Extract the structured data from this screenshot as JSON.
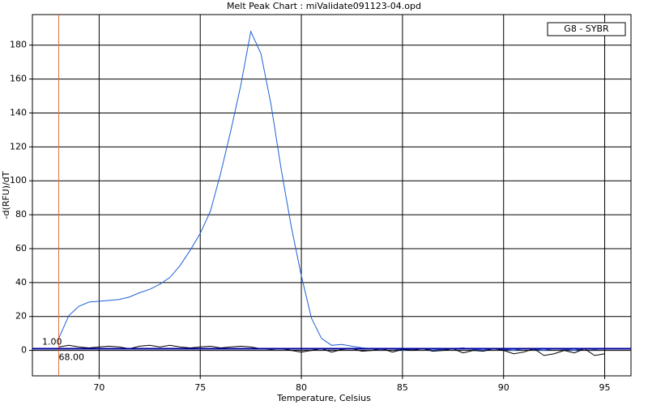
{
  "chart_data": {
    "type": "line",
    "title": "Melt Peak Chart : miValidate091123-04.opd",
    "x_label": "Temperature, Celsius",
    "y_label": "-d(RFU)/dT",
    "legend_label": "G8 - SYBR",
    "x": [
      68,
      68.5,
      69,
      69.5,
      70,
      70.5,
      71,
      71.5,
      72,
      72.5,
      73,
      73.5,
      74,
      74.5,
      75,
      75.5,
      76,
      76.5,
      77,
      77.5,
      78,
      78.5,
      79,
      79.5,
      80,
      80.5,
      81,
      81.5,
      82,
      82.5,
      83,
      83.5,
      84,
      84.5,
      85,
      85.5,
      86,
      86.5,
      87,
      87.5,
      88,
      88.5,
      89,
      89.5,
      90,
      90.5,
      91,
      91.5,
      92,
      92.5,
      93,
      93.5,
      94,
      94.5,
      95
    ],
    "series": [
      {
        "color": "#1f5fd6",
        "values": [
          7,
          20.5,
          26,
          28.5,
          29,
          29.5,
          30,
          31.5,
          34,
          36,
          39,
          43,
          50,
          59,
          69,
          82,
          104,
          129,
          156,
          188,
          175,
          145,
          107,
          73,
          44,
          19,
          7,
          3,
          3.5,
          2.5,
          1.5,
          1,
          0.5,
          1,
          0,
          0.5,
          1,
          0,
          0.5,
          1,
          1.5,
          0.5,
          0,
          1,
          0.5,
          0,
          1,
          0.5,
          0,
          1,
          0.5,
          0,
          1,
          0.5,
          1
        ]
      },
      {
        "color": "#000000",
        "values": [
          2,
          3,
          2,
          1.5,
          2,
          2.5,
          2,
          1,
          2.5,
          3,
          2,
          3,
          2,
          1.5,
          2,
          2.5,
          1.5,
          2,
          2.5,
          2,
          1,
          0.5,
          1,
          0,
          -1,
          0,
          1,
          -1,
          0.5,
          1,
          -0.5,
          0,
          1,
          -1,
          0.5,
          0,
          1,
          -0.5,
          0,
          1,
          -1.5,
          0,
          -0.5,
          1,
          0,
          -2,
          -1,
          1,
          -3,
          -2,
          0,
          -1.5,
          1,
          -3,
          -2
        ]
      }
    ],
    "threshold_x": {
      "value": 68,
      "label": "68.00"
    },
    "threshold_y": {
      "value": 1,
      "label": "1.00"
    },
    "xlim": [
      66.7,
      96.3
    ],
    "ylim": [
      -15,
      198
    ],
    "xticks": [
      70,
      75,
      80,
      85,
      90,
      95
    ],
    "yticks": [
      0,
      20,
      40,
      60,
      80,
      100,
      120,
      140,
      160,
      180
    ],
    "grid": true
  }
}
